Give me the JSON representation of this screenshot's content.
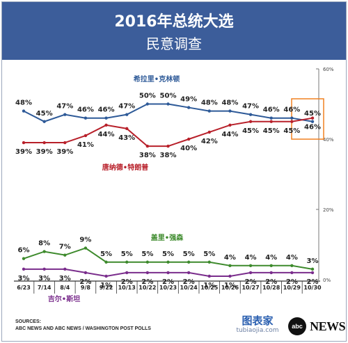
{
  "header": {
    "title": "2016年总统大选",
    "subtitle": "民意调查"
  },
  "chart_data": {
    "type": "line",
    "categories": [
      "6/23",
      "7/14",
      "8/4",
      "9/8",
      "9/22",
      "10/13",
      "10/22",
      "10/23",
      "10/24",
      "10/25",
      "10/26",
      "10/27",
      "10/28",
      "10/29",
      "10/30"
    ],
    "ylim": [
      0,
      60
    ],
    "yticks": [
      "0%",
      "20%",
      "40%",
      "60%"
    ],
    "grid": false,
    "series": [
      {
        "name": "希拉里•克林顿",
        "color": "#2e5a98",
        "values": [
          48,
          45,
          47,
          46,
          46,
          47,
          50,
          50,
          49,
          48,
          48,
          47,
          46,
          46,
          45
        ],
        "labels": [
          "48%",
          "45%",
          "47%",
          "46%",
          "46%",
          "47%",
          "50%",
          "50%",
          "49%",
          "48%",
          "48%",
          "47%",
          "46%",
          "46%",
          "45%"
        ]
      },
      {
        "name": "唐纳德•特朗普",
        "color": "#b8202a",
        "values": [
          39,
          39,
          39,
          41,
          44,
          43,
          38,
          38,
          40,
          42,
          44,
          45,
          45,
          45,
          46
        ],
        "labels": [
          "39%",
          "39%",
          "39%",
          "41%",
          "44%",
          "43%",
          "38%",
          "38%",
          "40%",
          "42%",
          "44%",
          "45%",
          "45%",
          "45%",
          "46%"
        ]
      },
      {
        "name": "盖里•强森",
        "color": "#3d8a2c",
        "values": [
          6,
          8,
          7,
          9,
          5,
          5,
          5,
          5,
          5,
          5,
          4,
          4,
          4,
          4,
          3
        ],
        "labels": [
          "6%",
          "8%",
          "7%",
          "9%",
          "5%",
          "5%",
          "5%",
          "5%",
          "5%",
          "5%",
          "4%",
          "4%",
          "4%",
          "4%",
          "3%"
        ]
      },
      {
        "name": "吉尔•斯坦",
        "color": "#7a2d8c",
        "values": [
          3,
          3,
          3,
          2,
          1,
          2,
          2,
          2,
          2,
          1,
          1,
          2,
          2,
          2,
          2
        ],
        "labels": [
          "3%",
          "3%",
          "3%",
          "2%",
          "1%",
          "2%",
          "2%",
          "2%",
          "2%",
          "1%",
          "1%",
          "2%",
          "2%",
          "2%",
          "2%"
        ]
      }
    ]
  },
  "sources": {
    "heading": "SOURCES:",
    "text": "ABC NEWS AND ABC NEWS / WASHINGTON POST POLLS"
  },
  "watermark": {
    "main": "图表家",
    "sub": "tubiaojia.com"
  },
  "logo": {
    "abc": "abc",
    "news": "NEWS"
  }
}
